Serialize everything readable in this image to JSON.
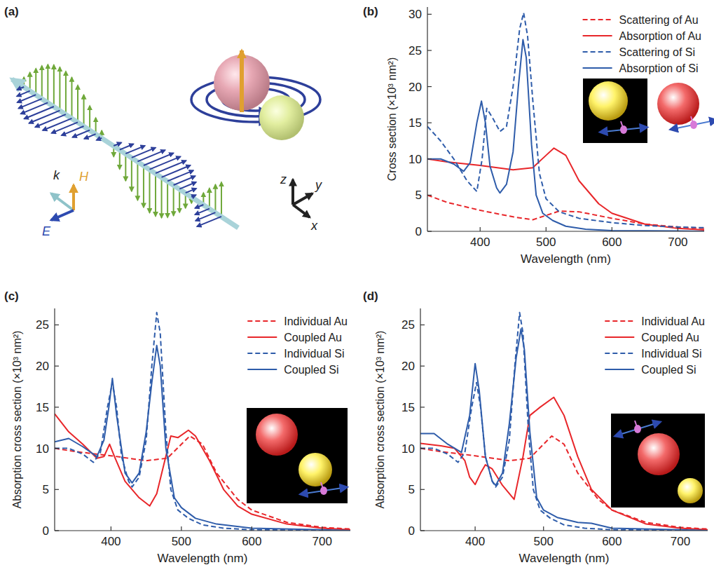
{
  "diagram": {
    "panel_label": "(a)",
    "field_labels": [
      "k",
      "H",
      "E"
    ],
    "axes": [
      "z",
      "y",
      "x"
    ]
  },
  "chart_data": [
    {
      "type": "line",
      "panel_label": "(b)",
      "x_label": "Wavelength (nm)",
      "y_label": "Cross section (×10³ nm²)",
      "xlim": [
        320,
        740
      ],
      "xticks": [
        400,
        500,
        600,
        700
      ],
      "ylim": [
        0,
        31
      ],
      "yticks": [
        0,
        5,
        10,
        15,
        20,
        25,
        30
      ],
      "legend": "top-right",
      "series": [
        {
          "name": "Scattering of Au",
          "color": "#e8262a",
          "line_style": "dashed",
          "x": [
            320,
            350,
            400,
            450,
            480,
            500,
            520,
            550,
            600,
            650,
            700,
            740
          ],
          "values": [
            5,
            4,
            2.9,
            2,
            1.6,
            2.2,
            2.8,
            2.7,
            1.8,
            1,
            0.6,
            0.4
          ]
        },
        {
          "name": "Absorption of Au",
          "color": "#e8262a",
          "line_style": "solid",
          "x": [
            320,
            350,
            400,
            450,
            480,
            500,
            512,
            530,
            550,
            580,
            600,
            650,
            700,
            740
          ],
          "values": [
            10,
            9.6,
            9.1,
            8.5,
            8.8,
            10.5,
            11.5,
            10.5,
            7,
            3.8,
            2.5,
            1,
            0.4,
            0.2
          ]
        },
        {
          "name": "Scattering of Si",
          "color": "#2e5caa",
          "line_style": "dashed",
          "x": [
            320,
            340,
            360,
            380,
            395,
            403,
            410,
            420,
            430,
            440,
            450,
            460,
            466,
            472,
            480,
            490,
            500,
            520,
            550,
            600,
            650,
            700,
            740
          ],
          "values": [
            14.5,
            12.5,
            10,
            7,
            5.5,
            10,
            17,
            15.5,
            13.8,
            14.5,
            20,
            28,
            30.2,
            27,
            18,
            8,
            4.5,
            2.7,
            1.8,
            1.2,
            0.8,
            0.6,
            0.5
          ]
        },
        {
          "name": "Absorption of Si",
          "color": "#2e5caa",
          "line_style": "solid",
          "x": [
            320,
            340,
            360,
            375,
            385,
            395,
            402,
            408,
            415,
            425,
            430,
            440,
            450,
            458,
            465,
            470,
            478,
            485,
            495,
            510,
            530,
            560,
            600,
            700,
            740
          ],
          "values": [
            10,
            10,
            9.3,
            8.3,
            9.5,
            15,
            18,
            15,
            9,
            6,
            5.3,
            6.5,
            11,
            20,
            26.5,
            24,
            12,
            5,
            2.5,
            1.5,
            0.7,
            0.3,
            0.1,
            0.05,
            0
          ]
        }
      ]
    },
    {
      "type": "line",
      "panel_label": "(c)",
      "x_label": "Wavelength (nm)",
      "y_label": "Absorption cross section (×10³ nm²)",
      "xlim": [
        320,
        740
      ],
      "xticks": [
        400,
        500,
        600,
        700
      ],
      "ylim": [
        0,
        27
      ],
      "yticks": [
        0,
        5,
        10,
        15,
        20,
        25
      ],
      "legend": "top-right",
      "series": [
        {
          "name": "Individual Au",
          "color": "#e8262a",
          "line_style": "dashed",
          "x": [
            320,
            350,
            400,
            450,
            480,
            500,
            512,
            530,
            550,
            580,
            600,
            650,
            700,
            740
          ],
          "values": [
            10,
            9.6,
            9.1,
            8.5,
            8.8,
            10.5,
            11.5,
            10.5,
            7,
            3.8,
            2.5,
            1,
            0.4,
            0.2
          ]
        },
        {
          "name": "Coupled Au",
          "color": "#e8262a",
          "line_style": "solid",
          "x": [
            320,
            340,
            360,
            380,
            390,
            398,
            405,
            420,
            440,
            455,
            465,
            475,
            485,
            495,
            510,
            520,
            540,
            560,
            580,
            600,
            650,
            700,
            740
          ],
          "values": [
            14.2,
            12,
            10.5,
            8.8,
            9,
            10.5,
            9,
            6,
            4,
            3,
            4.5,
            8,
            11.5,
            11.3,
            12.2,
            11.5,
            8.5,
            5,
            3,
            2,
            0.8,
            0.3,
            0.1
          ]
        },
        {
          "name": "Individual Si",
          "color": "#2e5caa",
          "line_style": "dashed",
          "x": [
            320,
            340,
            360,
            375,
            385,
            395,
            402,
            408,
            415,
            425,
            430,
            440,
            450,
            458,
            465,
            470,
            478,
            485,
            495,
            510,
            530,
            560,
            600,
            700,
            740
          ],
          "values": [
            10,
            10,
            9.3,
            8.3,
            9.5,
            15,
            18,
            15,
            9,
            6,
            5.3,
            6.5,
            11,
            20,
            26.5,
            24,
            12,
            5,
            2.5,
            1.5,
            0.7,
            0.3,
            0.1,
            0.05,
            0
          ]
        },
        {
          "name": "Coupled Si",
          "color": "#2e5caa",
          "line_style": "solid",
          "x": [
            320,
            340,
            360,
            380,
            390,
            397,
            402,
            408,
            420,
            430,
            440,
            450,
            458,
            465,
            470,
            478,
            490,
            500,
            520,
            550,
            600,
            700,
            740
          ],
          "values": [
            10.8,
            11.2,
            10.2,
            9,
            11,
            15,
            18.5,
            14,
            7,
            5.8,
            7,
            12,
            18,
            22.5,
            20,
            10,
            4,
            2.8,
            1.5,
            0.8,
            0.3,
            0.1,
            0
          ]
        }
      ]
    },
    {
      "type": "line",
      "panel_label": "(d)",
      "x_label": "Wavelength (nm)",
      "y_label": "Absorption cross section (×10³ nm²)",
      "xlim": [
        320,
        740
      ],
      "xticks": [
        400,
        500,
        600,
        700
      ],
      "ylim": [
        0,
        27
      ],
      "yticks": [
        0,
        5,
        10,
        15,
        20,
        25
      ],
      "legend": "top-right",
      "series": [
        {
          "name": "Individual Au",
          "color": "#e8262a",
          "line_style": "dashed",
          "x": [
            320,
            350,
            400,
            450,
            480,
            500,
            512,
            530,
            550,
            580,
            600,
            650,
            700,
            740
          ],
          "values": [
            10,
            9.6,
            9.1,
            8.5,
            8.8,
            10.5,
            11.5,
            10.5,
            7,
            3.8,
            2.5,
            1,
            0.4,
            0.2
          ]
        },
        {
          "name": "Coupled Au",
          "color": "#e8262a",
          "line_style": "solid",
          "x": [
            320,
            350,
            370,
            385,
            392,
            400,
            408,
            415,
            425,
            440,
            457,
            470,
            480,
            495,
            515,
            530,
            550,
            570,
            600,
            650,
            700,
            740
          ],
          "values": [
            10.6,
            10.3,
            10,
            8.5,
            6.5,
            5.6,
            7,
            8,
            7.5,
            5.5,
            3.8,
            9,
            14,
            15,
            16.2,
            14,
            9,
            5,
            2.5,
            0.8,
            0.3,
            0.1
          ]
        },
        {
          "name": "Individual Si",
          "color": "#2e5caa",
          "line_style": "dashed",
          "x": [
            320,
            340,
            360,
            375,
            385,
            395,
            402,
            408,
            415,
            425,
            430,
            440,
            450,
            458,
            465,
            470,
            478,
            485,
            495,
            510,
            530,
            560,
            600,
            700,
            740
          ],
          "values": [
            10,
            10,
            9.3,
            8.3,
            9.5,
            15,
            18,
            15,
            9,
            6,
            5.3,
            6.5,
            11,
            20,
            26.5,
            24,
            12,
            5,
            2.5,
            1.5,
            0.7,
            0.3,
            0.1,
            0.05,
            0
          ]
        },
        {
          "name": "Coupled Si",
          "color": "#2e5caa",
          "line_style": "solid",
          "x": [
            320,
            340,
            360,
            380,
            392,
            400,
            406,
            415,
            425,
            430,
            440,
            450,
            460,
            467,
            472,
            480,
            490,
            500,
            520,
            550,
            570,
            600,
            700,
            740
          ],
          "values": [
            11.8,
            11.8,
            10.5,
            9.5,
            14,
            20.3,
            17,
            9,
            6,
            5.5,
            7,
            13,
            21,
            24.5,
            22,
            12,
            4,
            2.5,
            1.6,
            1,
            0.9,
            0.3,
            0.1,
            0
          ]
        }
      ]
    }
  ]
}
